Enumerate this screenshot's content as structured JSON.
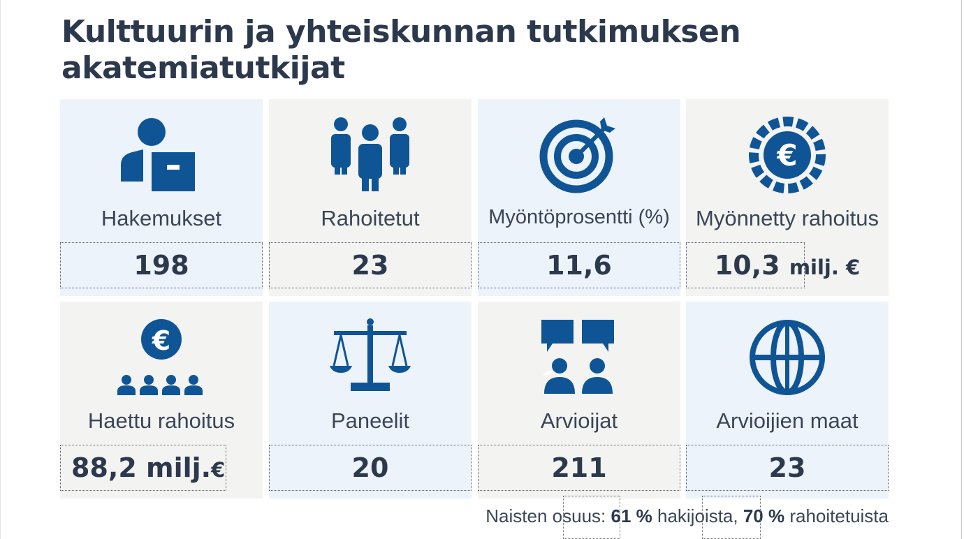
{
  "title": "Kulttuurin ja yhteiskunnan tutkimuksen akatemiatutkijat",
  "colors": {
    "icon": "#0f5596",
    "text_dark": "#2c394d",
    "card_blue": "#edf3fb",
    "card_grey": "#f3f3f2"
  },
  "cards": [
    {
      "label": "Hakemukset",
      "value": "198",
      "unit": "",
      "icon": "applicant-icon"
    },
    {
      "label": "Rahoitetut",
      "value": "23",
      "unit": "",
      "icon": "people-group-icon"
    },
    {
      "label": "Myöntöprosentti (%)",
      "value": "11,6",
      "unit": "",
      "icon": "target-icon"
    },
    {
      "label": "Myönnetty rahoitus",
      "value": "10,3",
      "unit": "milj. €",
      "icon": "euro-coin-icon"
    },
    {
      "label": "Haettu rahoitus",
      "value": "88,2 milj.",
      "unit": "€",
      "icon": "euro-people-icon"
    },
    {
      "label": "Paneelit",
      "value": "20",
      "unit": "",
      "icon": "scales-icon"
    },
    {
      "label": "Arvioijat",
      "value": "211",
      "unit": "",
      "icon": "reviewers-icon"
    },
    {
      "label": "Arvioijien maat",
      "value": "23",
      "unit": "",
      "icon": "globe-icon"
    }
  ],
  "footer": {
    "prefix": "Naisten osuus:",
    "women_applicants": "61 %",
    "applicants_text": "hakijoista,",
    "women_funded": "70 %",
    "funded_text": "rahoitetuista"
  }
}
